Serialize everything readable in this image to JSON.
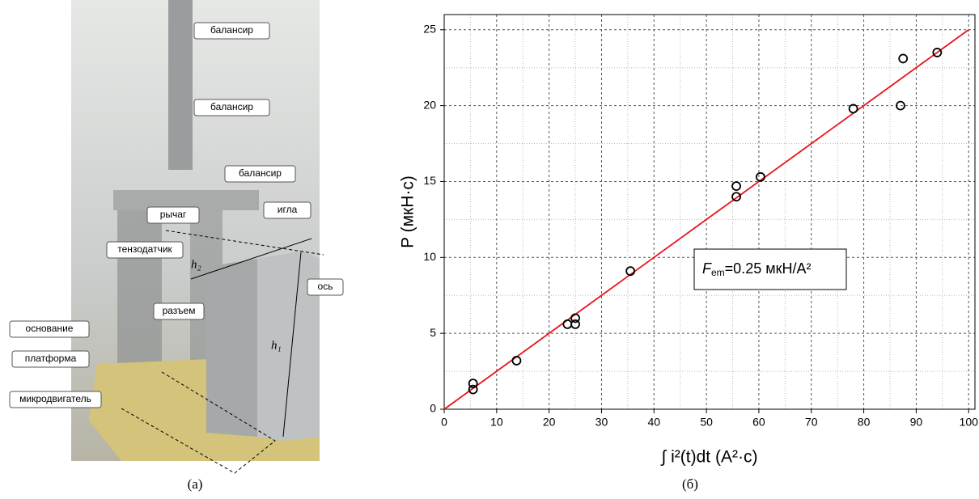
{
  "photo": {
    "labels": [
      "балансир",
      "балансир",
      "балансир",
      "рычаг",
      "игла",
      "тензодатчик",
      "ось",
      "разъем",
      "основание",
      "платформа",
      "микродвигатель"
    ],
    "h2": "h₂",
    "h1": "h₁",
    "caption": "(а)"
  },
  "chart_data": {
    "type": "scatter",
    "caption": "(б)",
    "ylabel": "P (мкН·с)",
    "xlabel": "∫ i²(t)dt (А²·с)",
    "annotation": {
      "symbol": "F",
      "subscript": "em",
      "text": "=0.25 мкН/А²"
    },
    "x": [
      5.5,
      5.5,
      13.8,
      23.5,
      25,
      25,
      35.5,
      55.7,
      55.7,
      60.3,
      78,
      87,
      87.5,
      94
    ],
    "y": [
      1.7,
      1.3,
      3.2,
      5.6,
      5.6,
      6,
      9.1,
      14,
      14.7,
      15.3,
      19.8,
      20,
      23.1,
      23.5
    ],
    "fit": {
      "x": [
        0,
        100
      ],
      "y": [
        0,
        25
      ],
      "color": "#e8141b"
    },
    "xlim": [
      0,
      101.2
    ],
    "ylim": [
      0,
      26
    ],
    "xticks": [
      0,
      10,
      20,
      30,
      40,
      50,
      60,
      70,
      80,
      90,
      100
    ],
    "yticks": [
      0,
      5,
      10,
      15,
      20,
      25
    ],
    "xminor": [
      5,
      15,
      25,
      35,
      45,
      55,
      65,
      75,
      85,
      95
    ],
    "yminor": [
      2.5,
      7.5,
      12.5,
      17.5,
      22.5
    ],
    "grid": true
  }
}
